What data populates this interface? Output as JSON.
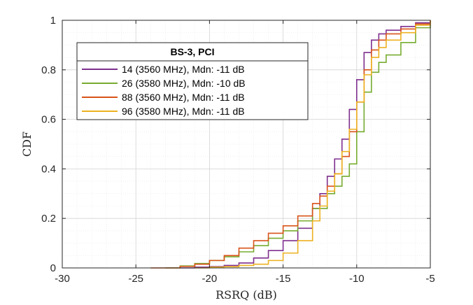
{
  "chart_data": {
    "type": "line",
    "step": true,
    "xlabel": "RSRQ (dB)",
    "ylabel": "CDF",
    "xlim": [
      -30,
      -5
    ],
    "ylim": [
      0,
      1
    ],
    "xticks": [
      -30,
      -25,
      -20,
      -15,
      -10,
      -5
    ],
    "yticks": [
      0,
      0.2,
      0.4,
      0.6,
      0.8,
      1
    ],
    "xtick_labels": [
      "-30",
      "-25",
      "-20",
      "-15",
      "-10",
      "-5"
    ],
    "ytick_labels": [
      "0",
      "0.2",
      "0.4",
      "0.6",
      "0.8",
      "1"
    ],
    "grid": true,
    "minor_grid": true,
    "legend": {
      "title": "BS-3, PCI",
      "location": "upper-left"
    },
    "series": [
      {
        "name": "14 (3560 MHz), Mdn: -11 dB",
        "color": "#7E2F8E",
        "x": [
          -22,
          -21,
          -20,
          -19,
          -18,
          -17,
          -16,
          -15,
          -14,
          -13,
          -12.5,
          -12,
          -11.5,
          -11,
          -10.5,
          -10,
          -9.5,
          -9,
          -8.5,
          -8,
          -7,
          -6,
          -5
        ],
        "y": [
          0,
          0.003,
          0.005,
          0.01,
          0.02,
          0.04,
          0.07,
          0.11,
          0.16,
          0.24,
          0.3,
          0.37,
          0.44,
          0.52,
          0.64,
          0.76,
          0.87,
          0.92,
          0.945,
          0.96,
          0.975,
          0.99,
          1
        ]
      },
      {
        "name": "26 (3580 MHz), Mdn: -10 dB",
        "color": "#77AC30",
        "x": [
          -23,
          -22,
          -21,
          -20,
          -19,
          -18,
          -17,
          -16,
          -15,
          -14,
          -13,
          -12,
          -11.5,
          -11,
          -10.5,
          -10,
          -9.5,
          -9,
          -8.5,
          -8,
          -7,
          -6,
          -5
        ],
        "y": [
          0,
          0.008,
          0.018,
          0.03,
          0.045,
          0.065,
          0.09,
          0.12,
          0.15,
          0.19,
          0.24,
          0.3,
          0.33,
          0.37,
          0.42,
          0.55,
          0.71,
          0.79,
          0.83,
          0.86,
          0.91,
          0.97,
          1
        ]
      },
      {
        "name": "88 (3560 MHz), Mdn: -11 dB",
        "color": "#D95319",
        "x": [
          -24,
          -22,
          -21,
          -20,
          -19,
          -18,
          -17,
          -16,
          -15,
          -14,
          -13,
          -12.5,
          -12,
          -11.5,
          -11,
          -10.5,
          -10,
          -9.5,
          -9,
          -8.5,
          -8,
          -7,
          -6,
          -5
        ],
        "y": [
          0,
          0.006,
          0.015,
          0.03,
          0.05,
          0.08,
          0.11,
          0.14,
          0.17,
          0.21,
          0.26,
          0.29,
          0.33,
          0.38,
          0.45,
          0.55,
          0.67,
          0.8,
          0.88,
          0.92,
          0.945,
          0.965,
          0.985,
          1
        ]
      },
      {
        "name": "96 (3580 MHz), Mdn: -11 dB",
        "color": "#EDB120",
        "x": [
          -21,
          -20,
          -19,
          -18,
          -17,
          -16,
          -15,
          -14,
          -13,
          -12.5,
          -12,
          -11.5,
          -11,
          -10.5,
          -10,
          -9.5,
          -9,
          -8.5,
          -8,
          -7,
          -6,
          -5
        ],
        "y": [
          0,
          0.003,
          0.005,
          0.01,
          0.015,
          0.03,
          0.06,
          0.11,
          0.19,
          0.25,
          0.31,
          0.38,
          0.47,
          0.56,
          0.67,
          0.78,
          0.85,
          0.89,
          0.92,
          0.95,
          0.98,
          1
        ]
      }
    ]
  }
}
